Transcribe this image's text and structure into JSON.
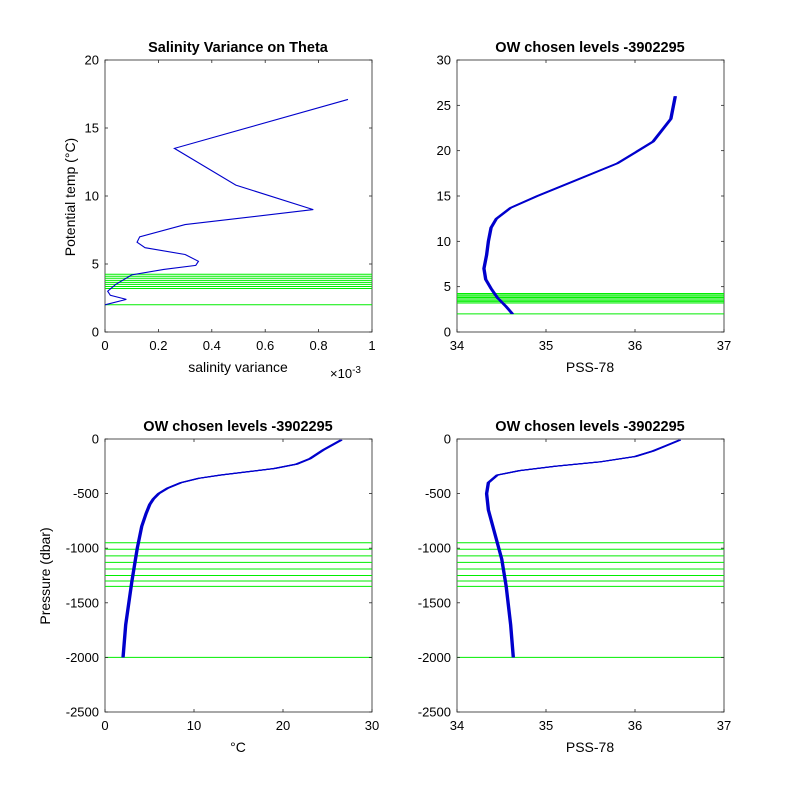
{
  "figure": {
    "background": "#ffffff",
    "trace_color": "#0000cc",
    "level_color": "#00ee00"
  },
  "chart_data": [
    {
      "type": "line",
      "title": "Salinity Variance on Theta",
      "xlabel": "salinity variance",
      "ylabel": "Potential temp (°C)",
      "xlim": [
        0,
        1
      ],
      "ylim": [
        0,
        20
      ],
      "xticks": [
        "0",
        "0.2",
        "0.4",
        "0.6",
        "0.8",
        "1"
      ],
      "yticks": [
        "0",
        "5",
        "10",
        "15",
        "20"
      ],
      "x_exponent_label": "×10",
      "x_exponent_value": "-3",
      "series": [
        {
          "x": [
            0.0,
            0.08,
            0.02,
            0.01,
            0.04,
            0.1,
            0.22,
            0.34,
            0.35,
            0.3,
            0.15,
            0.12,
            0.13,
            0.3,
            0.78,
            0.49,
            0.26,
            0.91
          ],
          "y": [
            2.0,
            2.4,
            2.7,
            3.0,
            3.5,
            4.2,
            4.6,
            4.9,
            5.2,
            5.7,
            6.2,
            6.6,
            7.0,
            7.9,
            9.0,
            10.8,
            13.5,
            17.1
          ]
        }
      ],
      "levels": [
        2.0,
        3.2,
        3.35,
        3.5,
        3.65,
        3.8,
        3.95,
        4.1,
        4.25
      ],
      "grid": false
    },
    {
      "type": "line",
      "title": "OW chosen levels -3902295",
      "xlabel": "PSS-78",
      "ylabel": "",
      "xlim": [
        34,
        37
      ],
      "ylim": [
        0,
        30
      ],
      "xticks": [
        "34",
        "35",
        "36",
        "37"
      ],
      "yticks": [
        "0",
        "5",
        "10",
        "15",
        "20",
        "25",
        "30"
      ],
      "series": [
        {
          "x": [
            34.62,
            34.55,
            34.45,
            34.38,
            34.32,
            34.3,
            34.33,
            34.35,
            34.38,
            34.44,
            34.6,
            34.9,
            35.3,
            35.8,
            36.2,
            36.4,
            36.45
          ],
          "y": [
            2.0,
            2.8,
            3.8,
            4.8,
            5.8,
            7.0,
            8.5,
            10.0,
            11.5,
            12.5,
            13.7,
            15.0,
            16.6,
            18.6,
            21.0,
            23.5,
            26.0
          ]
        }
      ],
      "levels": [
        2.0,
        3.2,
        3.35,
        3.5,
        3.65,
        3.8,
        3.95,
        4.1,
        4.25
      ],
      "grid": false
    },
    {
      "type": "line",
      "title": "OW chosen levels -3902295",
      "xlabel": "°C",
      "ylabel": "Pressure (dbar)",
      "xlim": [
        0,
        30
      ],
      "ylim": [
        -2500,
        0
      ],
      "xticks": [
        "0",
        "10",
        "20",
        "30"
      ],
      "yticks": [
        "-2500",
        "-2000",
        "-1500",
        "-1000",
        "-500",
        "0"
      ],
      "series": [
        {
          "x": [
            2.0,
            2.3,
            3.0,
            3.6,
            4.1,
            4.6,
            5.0,
            5.4,
            6.0,
            7.0,
            8.5,
            10.5,
            13.0,
            16.0,
            19.0,
            21.5,
            23.0,
            24.5,
            26.5
          ],
          "y": [
            -2000,
            -1700,
            -1300,
            -1000,
            -800,
            -680,
            -600,
            -550,
            -500,
            -450,
            -400,
            -360,
            -330,
            -300,
            -270,
            -230,
            -180,
            -100,
            -10
          ]
        }
      ],
      "levels": [
        -950,
        -1010,
        -1070,
        -1130,
        -1190,
        -1250,
        -1300,
        -1350,
        -2000
      ],
      "grid": false
    },
    {
      "type": "line",
      "title": "OW chosen levels -3902295",
      "xlabel": "PSS-78",
      "ylabel": "",
      "xlim": [
        34,
        37
      ],
      "ylim": [
        -2500,
        0
      ],
      "xticks": [
        "34",
        "35",
        "36",
        "37"
      ],
      "yticks": [
        "-2500",
        "-2000",
        "-1500",
        "-1000",
        "-500",
        "0"
      ],
      "series": [
        {
          "x": [
            34.63,
            34.6,
            34.55,
            34.5,
            34.45,
            34.4,
            34.35,
            34.33,
            34.35,
            34.45,
            34.7,
            35.1,
            35.6,
            36.0,
            36.2,
            36.35,
            36.5
          ],
          "y": [
            -2000,
            -1700,
            -1350,
            -1100,
            -950,
            -800,
            -650,
            -500,
            -400,
            -330,
            -290,
            -250,
            -210,
            -160,
            -110,
            -60,
            -10
          ]
        }
      ],
      "levels": [
        -950,
        -1010,
        -1070,
        -1130,
        -1190,
        -1250,
        -1300,
        -1350,
        -2000
      ],
      "grid": false
    }
  ]
}
